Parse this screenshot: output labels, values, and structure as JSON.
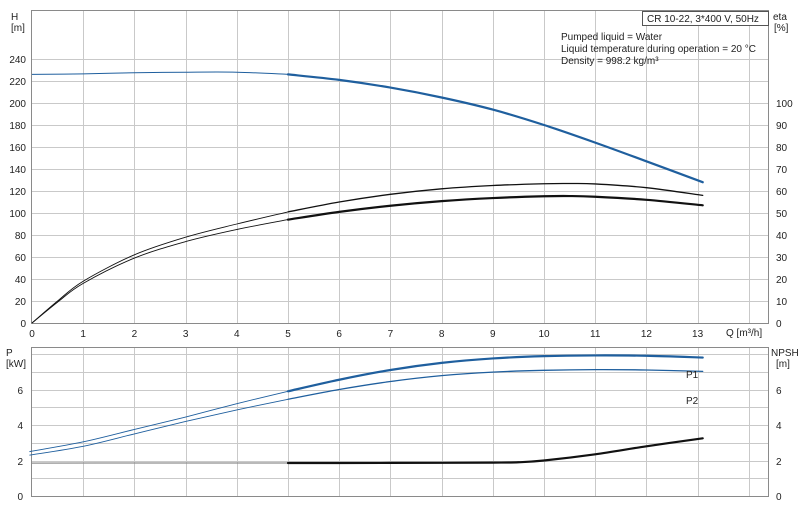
{
  "top_chart": {
    "title_box": "CR 10-22, 3*400 V, 50Hz",
    "notes": [
      "Pumped liquid = Water",
      "Liquid temperature during operation = 20 °C",
      "Density = 998.2 kg/m³"
    ],
    "ylabel_left": [
      "H",
      "[m]"
    ],
    "ylabel_right": [
      "eta",
      "[%]"
    ],
    "xlabel": "Q [m³/h]",
    "x_ticks": [
      "0",
      "1",
      "2",
      "3",
      "4",
      "5",
      "6",
      "7",
      "8",
      "9",
      "10",
      "11",
      "12",
      "13"
    ],
    "y_left_ticks": [
      "0",
      "20",
      "40",
      "60",
      "80",
      "100",
      "120",
      "140",
      "160",
      "180",
      "200",
      "220",
      "240"
    ],
    "y_right_ticks": [
      "0",
      "10",
      "20",
      "30",
      "40",
      "50",
      "60",
      "70",
      "80",
      "90",
      "100"
    ]
  },
  "bottom_chart": {
    "ylabel_left": [
      "P",
      "[kW]"
    ],
    "ylabel_right": [
      "NPSH",
      "[m]"
    ],
    "y_left_ticks": [
      "0",
      "2",
      "4",
      "6"
    ],
    "y_right_ticks": [
      "0",
      "2",
      "4",
      "6"
    ],
    "series_labels": [
      "P1",
      "P2"
    ]
  },
  "colors": {
    "blue": "#1f5f9e",
    "black": "#111111",
    "grey": "#8f8f8f",
    "grid": "#c9c9c9"
  },
  "chart_data": [
    {
      "type": "line",
      "title": "CR 10-22, 3*400 V, 50Hz",
      "xlabel": "Q [m³/h]",
      "ylabel": "H [m]",
      "ylabel_right": "eta [%]",
      "xlim": [
        0,
        13.9
      ],
      "ylim": [
        0,
        250
      ],
      "ylim_right": [
        0,
        113.6
      ],
      "grid": true,
      "series": [
        {
          "name": "H",
          "axis": "left",
          "x": [
            0,
            1,
            2,
            3,
            4,
            5,
            6,
            7,
            8,
            9,
            10,
            11,
            12,
            13.1
          ],
          "values": [
            226,
            226.5,
            227.5,
            228,
            228,
            226,
            221,
            214,
            205,
            194,
            180,
            164,
            147,
            128
          ]
        },
        {
          "name": "eta",
          "axis": "right",
          "x": [
            0,
            0.5,
            1,
            2,
            3,
            4,
            5,
            6,
            7,
            8,
            9,
            10,
            10.5,
            11,
            12,
            13.1
          ],
          "values": [
            0,
            10,
            19,
            31,
            39,
            45,
            50.5,
            55,
            58.5,
            61,
            62.5,
            63.3,
            63.4,
            63.2,
            61.5,
            58
          ]
        },
        {
          "name": "eta",
          "axis": "right",
          "x": [
            0,
            0.5,
            1,
            2,
            3,
            4,
            5,
            6,
            7,
            8,
            9,
            10,
            10.5,
            11,
            12,
            13.1
          ],
          "values": [
            0,
            9.5,
            18,
            29.5,
            37,
            42.5,
            47,
            50.5,
            53.3,
            55.4,
            56.8,
            57.6,
            57.7,
            57.4,
            56,
            53.5
          ]
        }
      ]
    },
    {
      "type": "line",
      "xlabel": "Q [m³/h]",
      "ylabel": "P [kW]",
      "ylabel_right": "NPSH [m]",
      "xlim": [
        0,
        13.9
      ],
      "ylim": [
        0,
        9.2
      ],
      "ylim_right": [
        0,
        9.2
      ],
      "grid": true,
      "series": [
        {
          "name": "P1",
          "axis": "left",
          "x": [
            -0.05,
            1,
            2,
            3,
            4,
            5,
            6,
            7,
            8,
            9,
            10,
            11,
            12,
            13.1
          ],
          "values": [
            2.5,
            3.05,
            3.75,
            4.45,
            5.2,
            5.9,
            6.55,
            7.1,
            7.5,
            7.75,
            7.88,
            7.92,
            7.9,
            7.8
          ]
        },
        {
          "name": "P2",
          "axis": "left",
          "x": [
            -0.05,
            1,
            2,
            3,
            4,
            5,
            6,
            7,
            8,
            9,
            10,
            11,
            12,
            13.1
          ],
          "values": [
            2.3,
            2.8,
            3.5,
            4.2,
            4.85,
            5.45,
            6.0,
            6.45,
            6.78,
            6.98,
            7.08,
            7.12,
            7.1,
            7.02
          ]
        },
        {
          "name": "NPSH",
          "axis": "right",
          "x": [
            0,
            2,
            4,
            5,
            6,
            8,
            9,
            9.5,
            10,
            11,
            12,
            13.1
          ],
          "values": [
            1.85,
            1.86,
            1.86,
            1.86,
            1.86,
            1.87,
            1.88,
            1.9,
            2.0,
            2.35,
            2.8,
            3.25
          ]
        }
      ]
    }
  ]
}
